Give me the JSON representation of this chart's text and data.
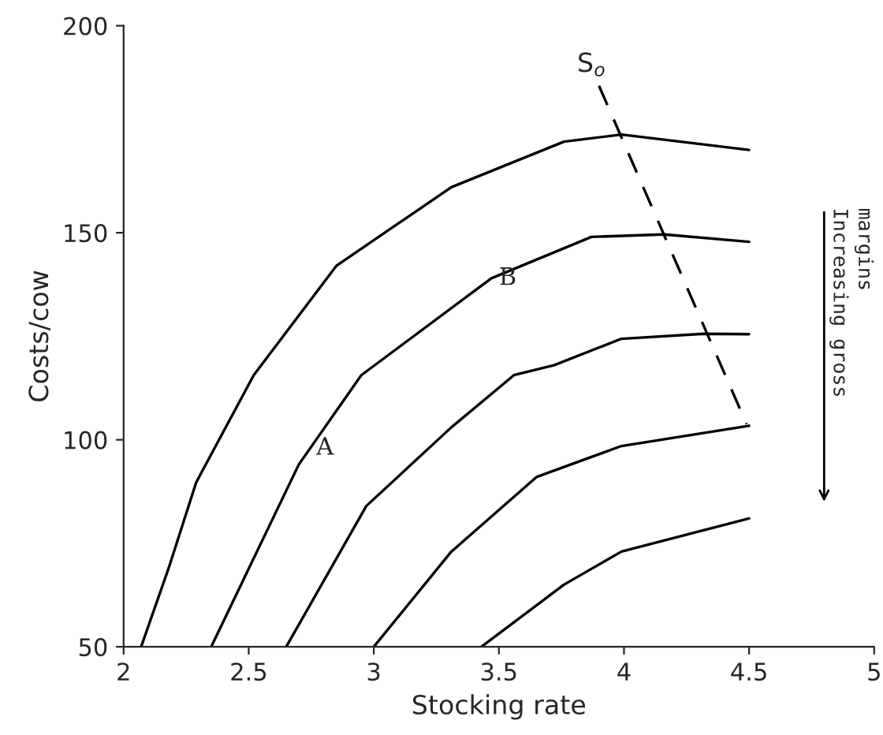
{
  "chart_data": {
    "type": "line",
    "xlabel": "Stocking rate",
    "ylabel": "Costs/cow",
    "xlim": [
      2,
      5
    ],
    "ylim": [
      50,
      200
    ],
    "xticks": [
      2,
      2.5,
      3,
      3.5,
      4,
      4.5,
      5
    ],
    "yticks": [
      50,
      100,
      150,
      200
    ],
    "grid": false,
    "legend": false,
    "marker": "none",
    "series": [
      {
        "color": "#000000",
        "line_style": "solid",
        "x": [
          2.07,
          2.18,
          2.29,
          2.52,
          2.85,
          3.31,
          3.76,
          3.99,
          4.5
        ],
        "values": [
          50,
          69,
          89.7,
          115.6,
          142,
          161,
          172,
          173.7,
          170
        ]
      },
      {
        "color": "#000000",
        "line_style": "solid",
        "x": [
          2.35,
          2.7,
          2.95,
          3.47,
          3.87,
          4.16,
          4.5
        ],
        "values": [
          50,
          94,
          115.6,
          139,
          149,
          149.6,
          147.8
        ]
      },
      {
        "color": "#000000",
        "line_style": "solid",
        "x": [
          2.65,
          2.97,
          3.31,
          3.56,
          3.72,
          3.99,
          4.32,
          4.5
        ],
        "values": [
          50,
          84,
          103,
          115.6,
          118,
          124.4,
          125.6,
          125.5
        ]
      },
      {
        "color": "#000000",
        "line_style": "solid",
        "x": [
          3.0,
          3.31,
          3.65,
          3.99,
          4.5
        ],
        "values": [
          50,
          73,
          91,
          98.5,
          103.4
        ]
      },
      {
        "color": "#000000",
        "line_style": "solid",
        "x": [
          3.43,
          3.76,
          3.99,
          4.5
        ],
        "values": [
          50,
          65,
          73,
          81
        ]
      },
      {
        "name": "S$_{o}$",
        "color": "#000000",
        "line_style": "dashed",
        "x": [
          3.9,
          4.49
        ],
        "values": [
          185.5,
          103.8
        ]
      }
    ],
    "annotations": [
      {
        "text": "A",
        "x": 2.74,
        "y": 98
      },
      {
        "text": "B",
        "x": 3.47,
        "y": 139
      },
      "Increasing gross\nmargins"
    ]
  }
}
